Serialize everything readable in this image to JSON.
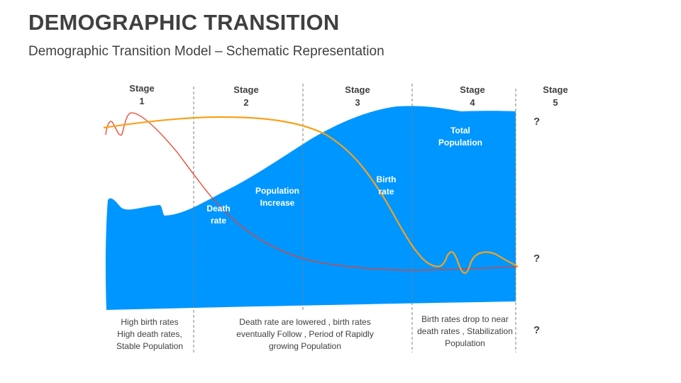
{
  "title": "DEMOGRAPHIC TRANSITION",
  "subtitle": "Demographic Transition Model – Schematic Representation",
  "stages": [
    {
      "label": "Stage",
      "number": "1"
    },
    {
      "label": "Stage",
      "number": "2"
    },
    {
      "label": "Stage",
      "number": "3"
    },
    {
      "label": "Stage",
      "number": "4"
    },
    {
      "label": "Stage",
      "number": "5"
    }
  ],
  "stage5_marks": [
    "?",
    "?",
    "?"
  ],
  "labels": {
    "total_population": "Total Population",
    "birth_rate": "Birth rate",
    "population_increase": "Population Increase",
    "death_rate": "Death rate"
  },
  "descriptions": [
    "High birth rates High death rates, Stable Population",
    "Death rate are lowered , birth rates eventually Follow , Period of Rapidly growing Population",
    "Birth rates drop to near death rates , Stabilization Population"
  ],
  "colors": {
    "population_area": "#0096FF",
    "birth_rate_line": "#F7A21B",
    "death_rate_line": "#E8402A",
    "divider": "#7F7F7F"
  }
}
